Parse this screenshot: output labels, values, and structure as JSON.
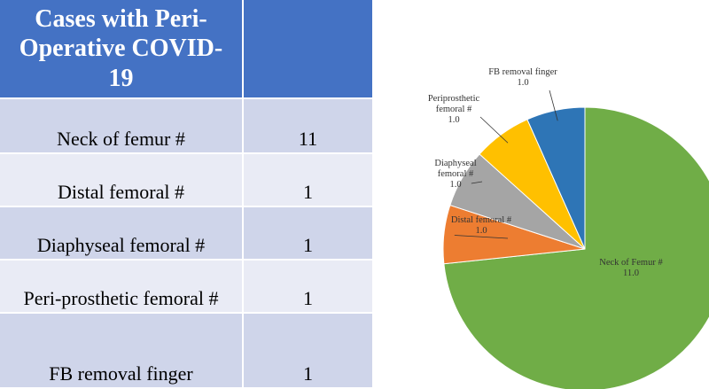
{
  "table": {
    "header": "Cases with Peri-Operative COVID-19",
    "rows": [
      [
        "Neck of femur #",
        "11"
      ],
      [
        "Distal femoral #",
        "1"
      ],
      [
        "Diaphyseal femoral #",
        "1"
      ],
      [
        "Peri-prosthetic femoral #",
        "1"
      ],
      [
        "FB removal finger",
        "1"
      ]
    ]
  },
  "chart_data": {
    "type": "pie",
    "categories": [
      "Neck of Femur #",
      "Distal femoral #",
      "Diaphyseal femoral #",
      "Periprosthetic femoral #",
      "FB removal finger"
    ],
    "values": [
      11,
      1,
      1,
      1,
      1
    ],
    "value_labels": [
      "11.0",
      "1.0",
      "1.0",
      "1.0",
      "1.0"
    ],
    "colors": [
      "#70ad47",
      "#ed7d31",
      "#a5a5a5",
      "#ffc000",
      "#2e75b6"
    ]
  }
}
